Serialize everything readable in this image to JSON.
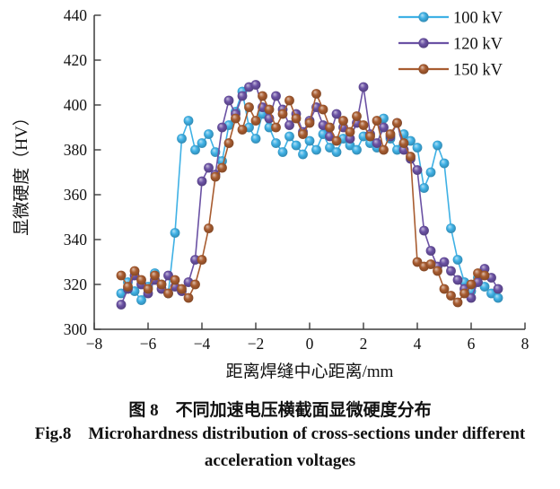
{
  "caption": {
    "zh": "图 8　不同加速电压横截面显微硬度分布",
    "en_line1": "Fig.8　Microhardness distribution of cross-sections under different",
    "en_line2": "acceleration voltages"
  },
  "chart_data": {
    "type": "scatter",
    "marker": "sphere-circle",
    "connected": true,
    "xlabel": "距离焊缝中心距离/mm",
    "ylabel": "显微硬度（HV）",
    "xlim": [
      -8,
      8
    ],
    "ylim": [
      300,
      440
    ],
    "xticks": [
      -8,
      -6,
      -4,
      -2,
      0,
      2,
      4,
      6,
      8
    ],
    "yticks": [
      300,
      320,
      340,
      360,
      380,
      400,
      420,
      440
    ],
    "grid": false,
    "legend_position": "top-right",
    "series": [
      {
        "name": "100 kV",
        "color": "#3fb1e5",
        "x0": -7,
        "dx": 0.25,
        "y": [
          316,
          321,
          317,
          313,
          319,
          325,
          320,
          316,
          343,
          385,
          393,
          380,
          383,
          387,
          379,
          375,
          391,
          397,
          406,
          390,
          385,
          396,
          390,
          383,
          379,
          386,
          382,
          378,
          384,
          380,
          387,
          381,
          379,
          385,
          382,
          380,
          386,
          383,
          381,
          394,
          385,
          380,
          387,
          384,
          381,
          363,
          370,
          382,
          374,
          345,
          331,
          321,
          317,
          323,
          319,
          316,
          314
        ]
      },
      {
        "name": "120 kV",
        "color": "#6b52a4",
        "x0": -7,
        "dx": 0.25,
        "y": [
          311,
          318,
          324,
          320,
          316,
          322,
          318,
          324,
          319,
          317,
          321,
          331,
          366,
          372,
          369,
          390,
          402,
          396,
          404,
          408,
          409,
          399,
          394,
          404,
          398,
          391,
          396,
          388,
          393,
          399,
          391,
          386,
          396,
          390,
          385,
          392,
          408,
          387,
          383,
          390,
          386,
          392,
          380,
          376,
          371,
          344,
          335,
          328,
          330,
          326,
          322,
          318,
          314,
          321,
          327,
          323,
          318
        ]
      },
      {
        "name": "150 kV",
        "color": "#a85c30",
        "x0": -7,
        "dx": 0.25,
        "y": [
          324,
          319,
          326,
          322,
          318,
          324,
          320,
          316,
          322,
          318,
          314,
          320,
          331,
          345,
          368,
          372,
          383,
          394,
          389,
          399,
          393,
          404,
          398,
          390,
          396,
          402,
          394,
          387,
          392,
          405,
          398,
          390,
          384,
          393,
          388,
          395,
          391,
          386,
          393,
          380,
          387,
          392,
          383,
          377,
          330,
          328,
          329,
          326,
          318,
          315,
          312,
          316,
          320,
          325,
          324
        ]
      }
    ]
  }
}
